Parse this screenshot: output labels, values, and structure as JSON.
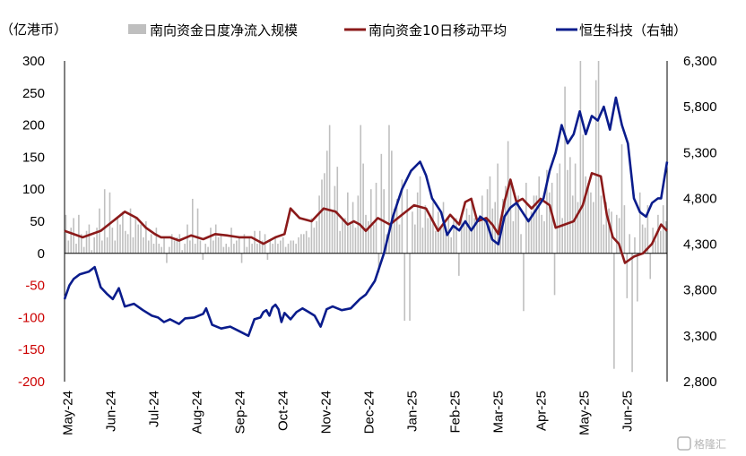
{
  "chart_data": {
    "type": "bar+line",
    "unit_label": "（亿港币）",
    "x_tick_labels": [
      "May-24",
      "Jun-24",
      "Jul-24",
      "Aug-24",
      "Sep-24",
      "Oct-24",
      "Nov-24",
      "Dec-24",
      "Jan-25",
      "Feb-25",
      "Mar-25",
      "Apr-25",
      "May-25",
      "Jun-25"
    ],
    "left_axis": {
      "ylim": [
        -200,
        300
      ],
      "ticks": [
        300,
        250,
        200,
        150,
        100,
        50,
        0,
        -50,
        -100,
        -150,
        -200
      ],
      "tick_color_positive": "#000000",
      "tick_color_negative": "#cc0000"
    },
    "right_axis": {
      "ylim": [
        2800,
        6300
      ],
      "ticks": [
        "6,300",
        "5,800",
        "5,300",
        "4,800",
        "4,300",
        "3,800",
        "3,300",
        "2,800"
      ]
    },
    "series": [
      {
        "name": "南向资金日度净流入规模",
        "type": "bar",
        "axis": "left",
        "color": "#bfbfbf",
        "values": [
          60,
          20,
          40,
          55,
          15,
          60,
          30,
          10,
          35,
          45,
          5,
          25,
          40,
          70,
          20,
          100,
          25,
          95,
          40,
          20,
          55,
          45,
          65,
          35,
          30,
          70,
          25,
          55,
          45,
          45,
          25,
          50,
          20,
          30,
          15,
          40,
          15,
          10,
          25,
          -15,
          10,
          30,
          20,
          25,
          30,
          5,
          15,
          45,
          20,
          85,
          15,
          70,
          20,
          -10,
          15,
          10,
          40,
          20,
          45,
          25,
          30,
          10,
          15,
          10,
          40,
          15,
          20,
          25,
          -15,
          30,
          10,
          25,
          15,
          35,
          15,
          35,
          20,
          30,
          -10,
          20,
          15,
          25,
          15,
          20,
          25,
          10,
          15,
          20,
          20,
          15,
          25,
          30,
          30,
          35,
          25,
          55,
          40,
          50,
          90,
          115,
          125,
          160,
          200,
          65,
          105,
          135,
          35,
          55,
          55,
          95,
          45,
          80,
          40,
          90,
          200,
          140,
          60,
          50,
          100,
          45,
          110,
          -30,
          155,
          100,
          30,
          200,
          160,
          70,
          85,
          45,
          115,
          -105,
          100,
          -105,
          65,
          45,
          95,
          120,
          40,
          75,
          55,
          60,
          80,
          35,
          65,
          40,
          80,
          30,
          55,
          25,
          55,
          55,
          -35,
          60,
          45,
          70,
          60,
          80,
          55,
          55,
          60,
          90,
          55,
          100,
          120,
          70,
          80,
          140,
          55,
          85,
          105,
          175,
          110,
          50,
          75,
          90,
          30,
          -90,
          110,
          55,
          65,
          90,
          90,
          120,
          60,
          50,
          130,
          95,
          110,
          -65,
          125,
          140,
          55,
          260,
          130,
          150,
          90,
          140,
          80,
          300,
          185,
          120,
          110,
          95,
          80,
          270,
          300,
          90,
          45,
          80,
          70,
          65,
          -180,
          60,
          55,
          170,
          75,
          -70,
          30,
          -185,
          25,
          -75,
          95,
          45,
          40,
          75,
          -40,
          40,
          20,
          60,
          35,
          75,
          50
        ],
        "label_values": [
          300,
          -180,
          -185,
          -105
        ]
      },
      {
        "name": "南向资金10日移动平均",
        "type": "line",
        "axis": "left",
        "color": "#8b1a1a",
        "x_frac": [
          0.0,
          0.03,
          0.06,
          0.08,
          0.1,
          0.12,
          0.135,
          0.15,
          0.16,
          0.175,
          0.19,
          0.21,
          0.23,
          0.25,
          0.27,
          0.29,
          0.31,
          0.33,
          0.35,
          0.365,
          0.375,
          0.39,
          0.41,
          0.43,
          0.45,
          0.47,
          0.48,
          0.49,
          0.5,
          0.52,
          0.54,
          0.56,
          0.58,
          0.6,
          0.62,
          0.64,
          0.655,
          0.665,
          0.675,
          0.685,
          0.7,
          0.71,
          0.72,
          0.73,
          0.74,
          0.75,
          0.76,
          0.775,
          0.79,
          0.805,
          0.815,
          0.83,
          0.845,
          0.86,
          0.875,
          0.89,
          0.9,
          0.91,
          0.92,
          0.93,
          0.945,
          0.96,
          0.975,
          0.99,
          1.0
        ],
        "values": [
          35,
          25,
          35,
          50,
          65,
          55,
          40,
          30,
          25,
          25,
          20,
          28,
          22,
          30,
          28,
          25,
          25,
          15,
          25,
          30,
          70,
          55,
          50,
          70,
          65,
          45,
          50,
          45,
          35,
          55,
          45,
          60,
          75,
          70,
          35,
          60,
          45,
          80,
          85,
          50,
          55,
          45,
          30,
          80,
          115,
          80,
          85,
          70,
          85,
          75,
          40,
          45,
          50,
          75,
          125,
          120,
          60,
          25,
          15,
          -15,
          -5,
          0,
          15,
          45,
          35
        ]
      },
      {
        "name": "恒生科技（右轴）",
        "type": "line",
        "axis": "right",
        "color": "#0a1c8c",
        "x_frac": [
          0.0,
          0.008,
          0.015,
          0.025,
          0.04,
          0.05,
          0.06,
          0.07,
          0.08,
          0.09,
          0.1,
          0.115,
          0.13,
          0.145,
          0.155,
          0.165,
          0.175,
          0.19,
          0.2,
          0.215,
          0.23,
          0.235,
          0.245,
          0.26,
          0.275,
          0.29,
          0.305,
          0.315,
          0.325,
          0.33,
          0.335,
          0.34,
          0.345,
          0.35,
          0.355,
          0.36,
          0.365,
          0.375,
          0.385,
          0.395,
          0.405,
          0.415,
          0.425,
          0.435,
          0.445,
          0.46,
          0.475,
          0.49,
          0.5,
          0.515,
          0.53,
          0.545,
          0.56,
          0.575,
          0.59,
          0.6,
          0.61,
          0.615,
          0.625,
          0.635,
          0.645,
          0.655,
          0.665,
          0.675,
          0.68,
          0.69,
          0.7,
          0.71,
          0.72,
          0.73,
          0.74,
          0.75,
          0.76,
          0.77,
          0.775,
          0.785,
          0.795,
          0.805,
          0.815,
          0.825,
          0.835,
          0.845,
          0.855,
          0.865,
          0.875,
          0.885,
          0.895,
          0.905,
          0.915,
          0.925,
          0.935,
          0.945,
          0.955,
          0.965,
          0.975,
          0.985,
          0.99,
          1.0
        ],
        "values": [
          3700,
          3850,
          3920,
          3970,
          4000,
          4050,
          3830,
          3760,
          3700,
          3820,
          3620,
          3650,
          3580,
          3520,
          3500,
          3450,
          3480,
          3430,
          3490,
          3500,
          3540,
          3600,
          3420,
          3380,
          3400,
          3350,
          3300,
          3480,
          3500,
          3560,
          3580,
          3520,
          3610,
          3640,
          3590,
          3450,
          3550,
          3480,
          3560,
          3600,
          3560,
          3520,
          3400,
          3590,
          3620,
          3580,
          3600,
          3700,
          3750,
          3900,
          4200,
          4600,
          4900,
          5100,
          5200,
          5050,
          4800,
          4750,
          4650,
          4400,
          4500,
          4450,
          4550,
          4450,
          4500,
          4600,
          4550,
          4350,
          4300,
          4600,
          4700,
          4750,
          4650,
          4550,
          4600,
          4700,
          4800,
          5100,
          5300,
          5600,
          5400,
          5500,
          5750,
          5500,
          5700,
          5650,
          5800,
          5550,
          5900,
          5600,
          5400,
          4800,
          4650,
          4600,
          4750,
          4800,
          4800,
          5200
        ]
      }
    ]
  },
  "legend": {
    "bar_label": "南向资金日度净流入规模",
    "ma_label": "南向资金10日移动平均",
    "hstech_label": "恒生科技（右轴）"
  },
  "watermark": "格隆汇"
}
